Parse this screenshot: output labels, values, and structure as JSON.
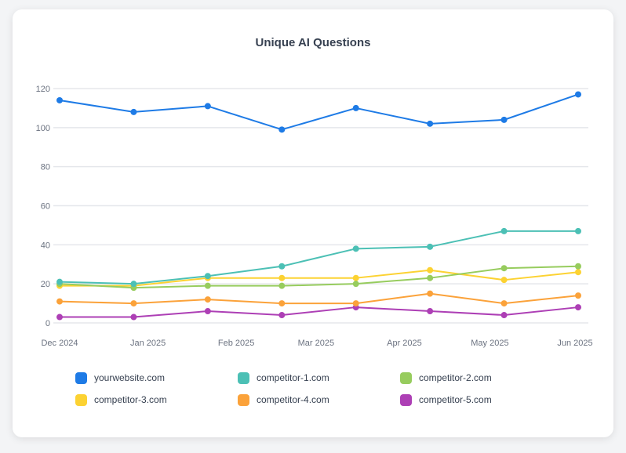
{
  "chart_data": {
    "type": "line",
    "title": "Unique AI Questions",
    "xlabel": "",
    "ylabel": "",
    "ylim": [
      0,
      120
    ],
    "yticks": [
      0,
      20,
      40,
      60,
      80,
      100,
      120
    ],
    "xlim": [
      "2024-12-01",
      "2025-06-01"
    ],
    "xticks": [
      "Dec 2024",
      "Jan 2025",
      "Feb 2025",
      "Mar 2025",
      "Apr 2025",
      "May 2025",
      "Jun 2025"
    ],
    "grid": "horizontal",
    "legend": "bottom",
    "x": [
      "2024-12-01",
      "2024-12-27",
      "2025-01-22",
      "2025-02-17",
      "2025-03-15",
      "2025-04-10",
      "2025-05-06",
      "2025-06-01"
    ],
    "series": [
      {
        "name": "yourwebsite.com",
        "color": "#1e7be6",
        "values": [
          114,
          108,
          111,
          99,
          110,
          102,
          104,
          117
        ]
      },
      {
        "name": "competitor-1.com",
        "color": "#4cc0b5",
        "values": [
          21,
          20,
          24,
          29,
          38,
          39,
          47,
          47
        ]
      },
      {
        "name": "competitor-2.com",
        "color": "#97cc5e",
        "values": [
          20,
          18,
          19,
          19,
          20,
          23,
          28,
          29
        ]
      },
      {
        "name": "competitor-3.com",
        "color": "#fcd232",
        "values": [
          19,
          19,
          23,
          23,
          23,
          27,
          22,
          26
        ]
      },
      {
        "name": "competitor-4.com",
        "color": "#fba23a",
        "values": [
          11,
          10,
          12,
          10,
          10,
          15,
          10,
          14
        ]
      },
      {
        "name": "competitor-5.com",
        "color": "#ad3fb5",
        "values": [
          3,
          3,
          6,
          4,
          8,
          6,
          4,
          8
        ]
      }
    ]
  }
}
